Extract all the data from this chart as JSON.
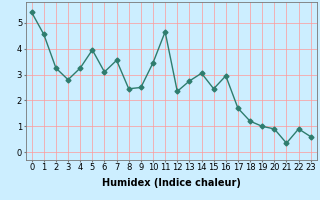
{
  "x": [
    0,
    1,
    2,
    3,
    4,
    5,
    6,
    7,
    8,
    9,
    10,
    11,
    12,
    13,
    14,
    15,
    16,
    17,
    18,
    19,
    20,
    21,
    22,
    23
  ],
  "y": [
    5.4,
    4.55,
    3.25,
    2.8,
    3.25,
    3.95,
    3.1,
    3.55,
    2.45,
    2.5,
    3.45,
    4.65,
    2.35,
    2.75,
    3.05,
    2.45,
    2.95,
    1.7,
    1.2,
    1.0,
    0.9,
    0.35,
    0.9,
    0.6
  ],
  "line_color": "#2e7d6e",
  "marker": "D",
  "markersize": 2.5,
  "linewidth": 1.0,
  "background_color": "#cceeff",
  "grid_color": "#ff9999",
  "xlabel": "Humidex (Indice chaleur)",
  "xlabel_fontsize": 7,
  "tick_fontsize": 6,
  "xlim": [
    -0.5,
    23.5
  ],
  "ylim": [
    -0.3,
    5.8
  ],
  "yticks": [
    0,
    1,
    2,
    3,
    4,
    5
  ],
  "xticks": [
    0,
    1,
    2,
    3,
    4,
    5,
    6,
    7,
    8,
    9,
    10,
    11,
    12,
    13,
    14,
    15,
    16,
    17,
    18,
    19,
    20,
    21,
    22,
    23
  ]
}
